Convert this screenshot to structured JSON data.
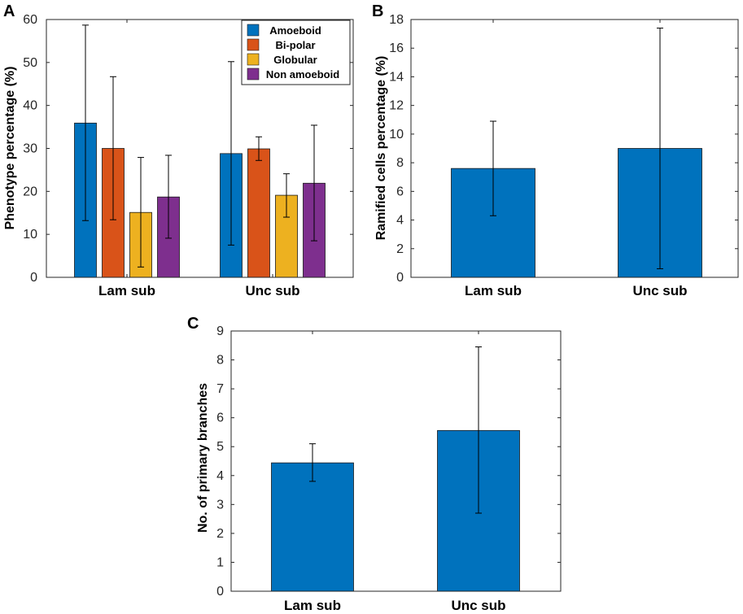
{
  "chart_data": [
    {
      "panel": "A",
      "type": "bar",
      "categories": [
        "Lam sub",
        "Unc sub"
      ],
      "ylabel": "Phenotype percentage (%)",
      "ylim": [
        0,
        60
      ],
      "yticks": [
        0,
        10,
        20,
        30,
        40,
        50,
        60
      ],
      "legend": "top-right",
      "series": [
        {
          "name": "Amoeboid",
          "color": "#0072BD",
          "values": [
            35.9,
            28.8
          ],
          "err_low": [
            13.2,
            7.5
          ],
          "err_high": [
            58.7,
            50.2
          ]
        },
        {
          "name": "Bi-polar",
          "color": "#D95319",
          "values": [
            30.0,
            29.9
          ],
          "err_low": [
            13.4,
            27.2
          ],
          "err_high": [
            46.7,
            32.7
          ]
        },
        {
          "name": "Globular",
          "color": "#EDB120",
          "values": [
            15.1,
            19.1
          ],
          "err_low": [
            2.4,
            14.0
          ],
          "err_high": [
            27.9,
            24.1
          ]
        },
        {
          "name": "Non amoeboid",
          "color": "#7E2F8E",
          "values": [
            18.7,
            21.9
          ],
          "err_low": [
            9.1,
            8.5
          ],
          "err_high": [
            28.4,
            35.4
          ]
        }
      ]
    },
    {
      "panel": "B",
      "type": "bar",
      "categories": [
        "Lam sub",
        "Unc sub"
      ],
      "ylabel": "Ramified cells percentage (%)",
      "ylim": [
        0,
        18
      ],
      "yticks": [
        0,
        2,
        4,
        6,
        8,
        10,
        12,
        14,
        16,
        18
      ],
      "series": [
        {
          "name": "Ramified",
          "color": "#0072BD",
          "values": [
            7.6,
            9.0
          ],
          "err_low": [
            4.3,
            0.6
          ],
          "err_high": [
            10.9,
            17.4
          ]
        }
      ]
    },
    {
      "panel": "C",
      "type": "bar",
      "categories": [
        "Lam sub",
        "Unc sub"
      ],
      "ylabel": "No. of primary branches",
      "ylim": [
        0,
        9
      ],
      "yticks": [
        0,
        1,
        2,
        3,
        4,
        5,
        6,
        7,
        8,
        9
      ],
      "series": [
        {
          "name": "Primary branches",
          "color": "#0072BD",
          "values": [
            4.44,
            5.56
          ],
          "err_low": [
            3.8,
            2.7
          ],
          "err_high": [
            5.1,
            8.45
          ]
        }
      ]
    }
  ]
}
